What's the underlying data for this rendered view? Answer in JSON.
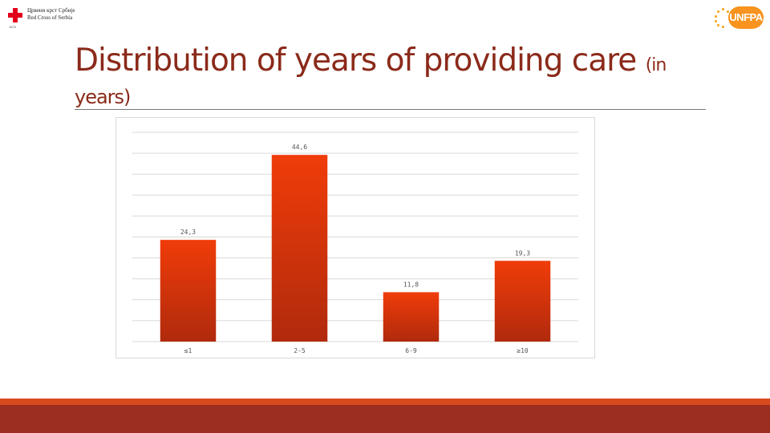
{
  "header": {
    "red_cross": {
      "line1": "Црвени крст Србије",
      "line2": "Red Cross of Serbia",
      "year": "1876"
    },
    "unfpa": {
      "label": "UNFPA"
    }
  },
  "slide": {
    "title_main": "Distribution of years of providing care",
    "title_small": "(in",
    "title_line2": "years)"
  },
  "chart_data": {
    "type": "bar",
    "title": "",
    "xlabel": "",
    "ylabel": "",
    "categories": [
      "≤1",
      "2-5",
      "6-9",
      "≥10"
    ],
    "values": [
      24.3,
      44.6,
      11.8,
      19.3
    ],
    "value_labels": [
      "24,3",
      "44,6",
      "11,8",
      "19,3"
    ],
    "ylim": [
      0,
      50
    ],
    "grid": true,
    "bar_color_top": "#f03c0a",
    "bar_color_bottom": "#b02a0c"
  },
  "colors": {
    "title": "#8b2a1a",
    "footer_top": "#d84a1e",
    "footer_main": "#9c2e21"
  }
}
